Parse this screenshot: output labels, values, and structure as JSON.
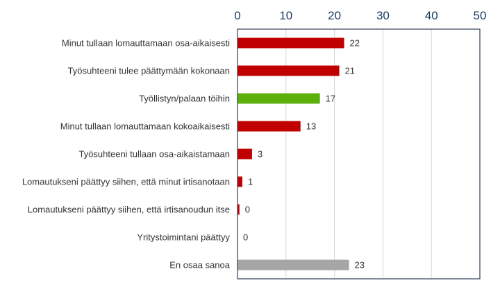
{
  "chart_data": {
    "type": "bar",
    "orientation": "horizontal",
    "title": "",
    "xlabel": "",
    "ylabel": "",
    "xlim": [
      0,
      50
    ],
    "ticks": [
      0,
      10,
      20,
      30,
      40,
      50
    ],
    "axis_position": "top",
    "grid": true,
    "categories": [
      "Minut tullaan lomauttamaan osa-aikaisesti",
      "Työsuhteeni tulee päättymään kokonaan",
      "Työllistyn/palaan töihin",
      "Minut tullaan lomauttamaan kokoaikaisesti",
      "Työsuhteeni tullaan osa-aikaistamaan",
      "Lomautukseni päättyy siihen, että minut irtisanotaan",
      "Lomautukseni päättyy siihen, että irtisanoudun itse",
      "Yritystoimintani päättyy",
      "En osaa sanoa"
    ],
    "values": [
      22,
      21,
      17,
      13,
      3,
      1,
      0.4,
      0,
      23
    ],
    "value_labels": [
      "22",
      "21",
      "17",
      "13",
      "3",
      "1",
      "0",
      "0",
      "23"
    ],
    "colors": [
      "#c00000",
      "#c00000",
      "#5cb00c",
      "#c00000",
      "#c00000",
      "#c00000",
      "#c00000",
      "#c00000",
      "#a6a6a6"
    ]
  }
}
